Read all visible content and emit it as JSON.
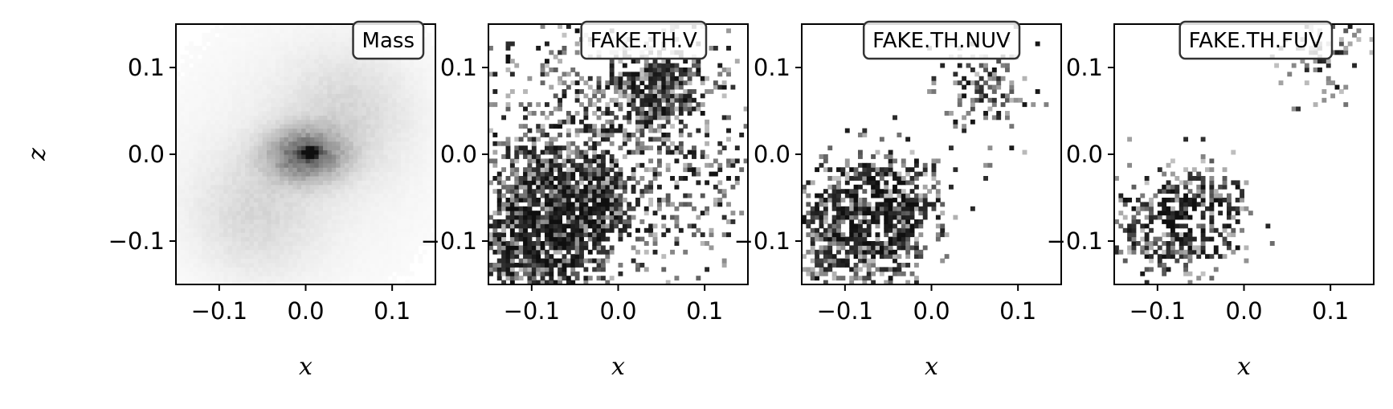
{
  "figure": {
    "background": "#ffffff"
  },
  "chart_data": [
    {
      "type": "heatmap",
      "title": "Mass",
      "xlabel": "x",
      "ylabel": "z",
      "xlim": [
        -0.15,
        0.15
      ],
      "ylim": [
        -0.15,
        0.15
      ],
      "xticks": [
        "−0.1",
        "0.0",
        "0.1"
      ],
      "yticks": [
        "0.1",
        "0.0",
        "−0.1"
      ],
      "colormap": "Greys",
      "grid": false,
      "legend_placement": "top-right",
      "density_blobs": [
        {
          "x": 0.0,
          "z": 0.0,
          "sx": 0.03,
          "sz": 0.02,
          "peak": 0.55
        },
        {
          "x": 0.005,
          "z": 0.003,
          "sx": 0.006,
          "sz": 0.004,
          "peak": 1.0
        },
        {
          "x": -0.06,
          "z": -0.07,
          "sx": 0.05,
          "sz": 0.05,
          "peak": 0.12
        },
        {
          "x": 0.05,
          "z": 0.05,
          "sx": 0.05,
          "sz": 0.05,
          "peak": 0.12
        },
        {
          "x": 0.0,
          "z": 0.0,
          "sx": 0.12,
          "sz": 0.12,
          "peak": 0.06
        }
      ],
      "speckle": 0.45
    },
    {
      "type": "heatmap",
      "title": "FAKE.TH.V",
      "xlabel": "x",
      "ylabel": "",
      "xlim": [
        -0.15,
        0.15
      ],
      "ylim": [
        -0.15,
        0.15
      ],
      "xticks": [
        "−0.1",
        "0.0",
        "0.1"
      ],
      "yticks": [
        "0.1",
        "0.0",
        "−0.1"
      ],
      "colormap": "Greys",
      "grid": false,
      "legend_placement": "top-right",
      "density_blobs": [
        {
          "x": -0.055,
          "z": -0.06,
          "sx": 0.035,
          "sz": 0.035,
          "peak": 0.95
        },
        {
          "x": -0.1,
          "z": -0.1,
          "sx": 0.04,
          "sz": 0.04,
          "peak": 0.6
        },
        {
          "x": 0.045,
          "z": 0.075,
          "sx": 0.025,
          "sz": 0.02,
          "peak": 0.7
        },
        {
          "x": 0.0,
          "z": 0.0,
          "sx": 0.1,
          "sz": 0.1,
          "peak": 0.2
        }
      ],
      "speckle": 0.9
    },
    {
      "type": "heatmap",
      "title": "FAKE.TH.NUV",
      "xlabel": "x",
      "ylabel": "",
      "xlim": [
        -0.15,
        0.15
      ],
      "ylim": [
        -0.15,
        0.15
      ],
      "xticks": [
        "−0.1",
        "0.0",
        "0.1"
      ],
      "yticks": [
        "0.1",
        "0.0",
        "−0.1"
      ],
      "colormap": "Greys",
      "grid": false,
      "legend_placement": "top-right",
      "density_blobs": [
        {
          "x": -0.055,
          "z": -0.065,
          "sx": 0.035,
          "sz": 0.035,
          "peak": 0.9
        },
        {
          "x": -0.1,
          "z": -0.09,
          "sx": 0.04,
          "sz": 0.04,
          "peak": 0.55
        },
        {
          "x": 0.06,
          "z": 0.08,
          "sx": 0.03,
          "sz": 0.03,
          "peak": 0.3
        }
      ],
      "speckle": 0.75
    },
    {
      "type": "heatmap",
      "title": "FAKE.TH.FUV",
      "xlabel": "x",
      "ylabel": "",
      "xlim": [
        -0.15,
        0.15
      ],
      "ylim": [
        -0.15,
        0.15
      ],
      "xticks": [
        "−0.1",
        "0.0",
        "0.1"
      ],
      "yticks": [
        "0.1",
        "0.0",
        "−0.1"
      ],
      "colormap": "Greys",
      "grid": false,
      "legend_placement": "top-right",
      "density_blobs": [
        {
          "x": -0.055,
          "z": -0.07,
          "sx": 0.03,
          "sz": 0.03,
          "peak": 0.85
        },
        {
          "x": -0.1,
          "z": -0.09,
          "sx": 0.035,
          "sz": 0.035,
          "peak": 0.45
        },
        {
          "x": 0.09,
          "z": 0.12,
          "sx": 0.03,
          "sz": 0.03,
          "peak": 0.25
        }
      ],
      "speckle": 0.6
    }
  ]
}
